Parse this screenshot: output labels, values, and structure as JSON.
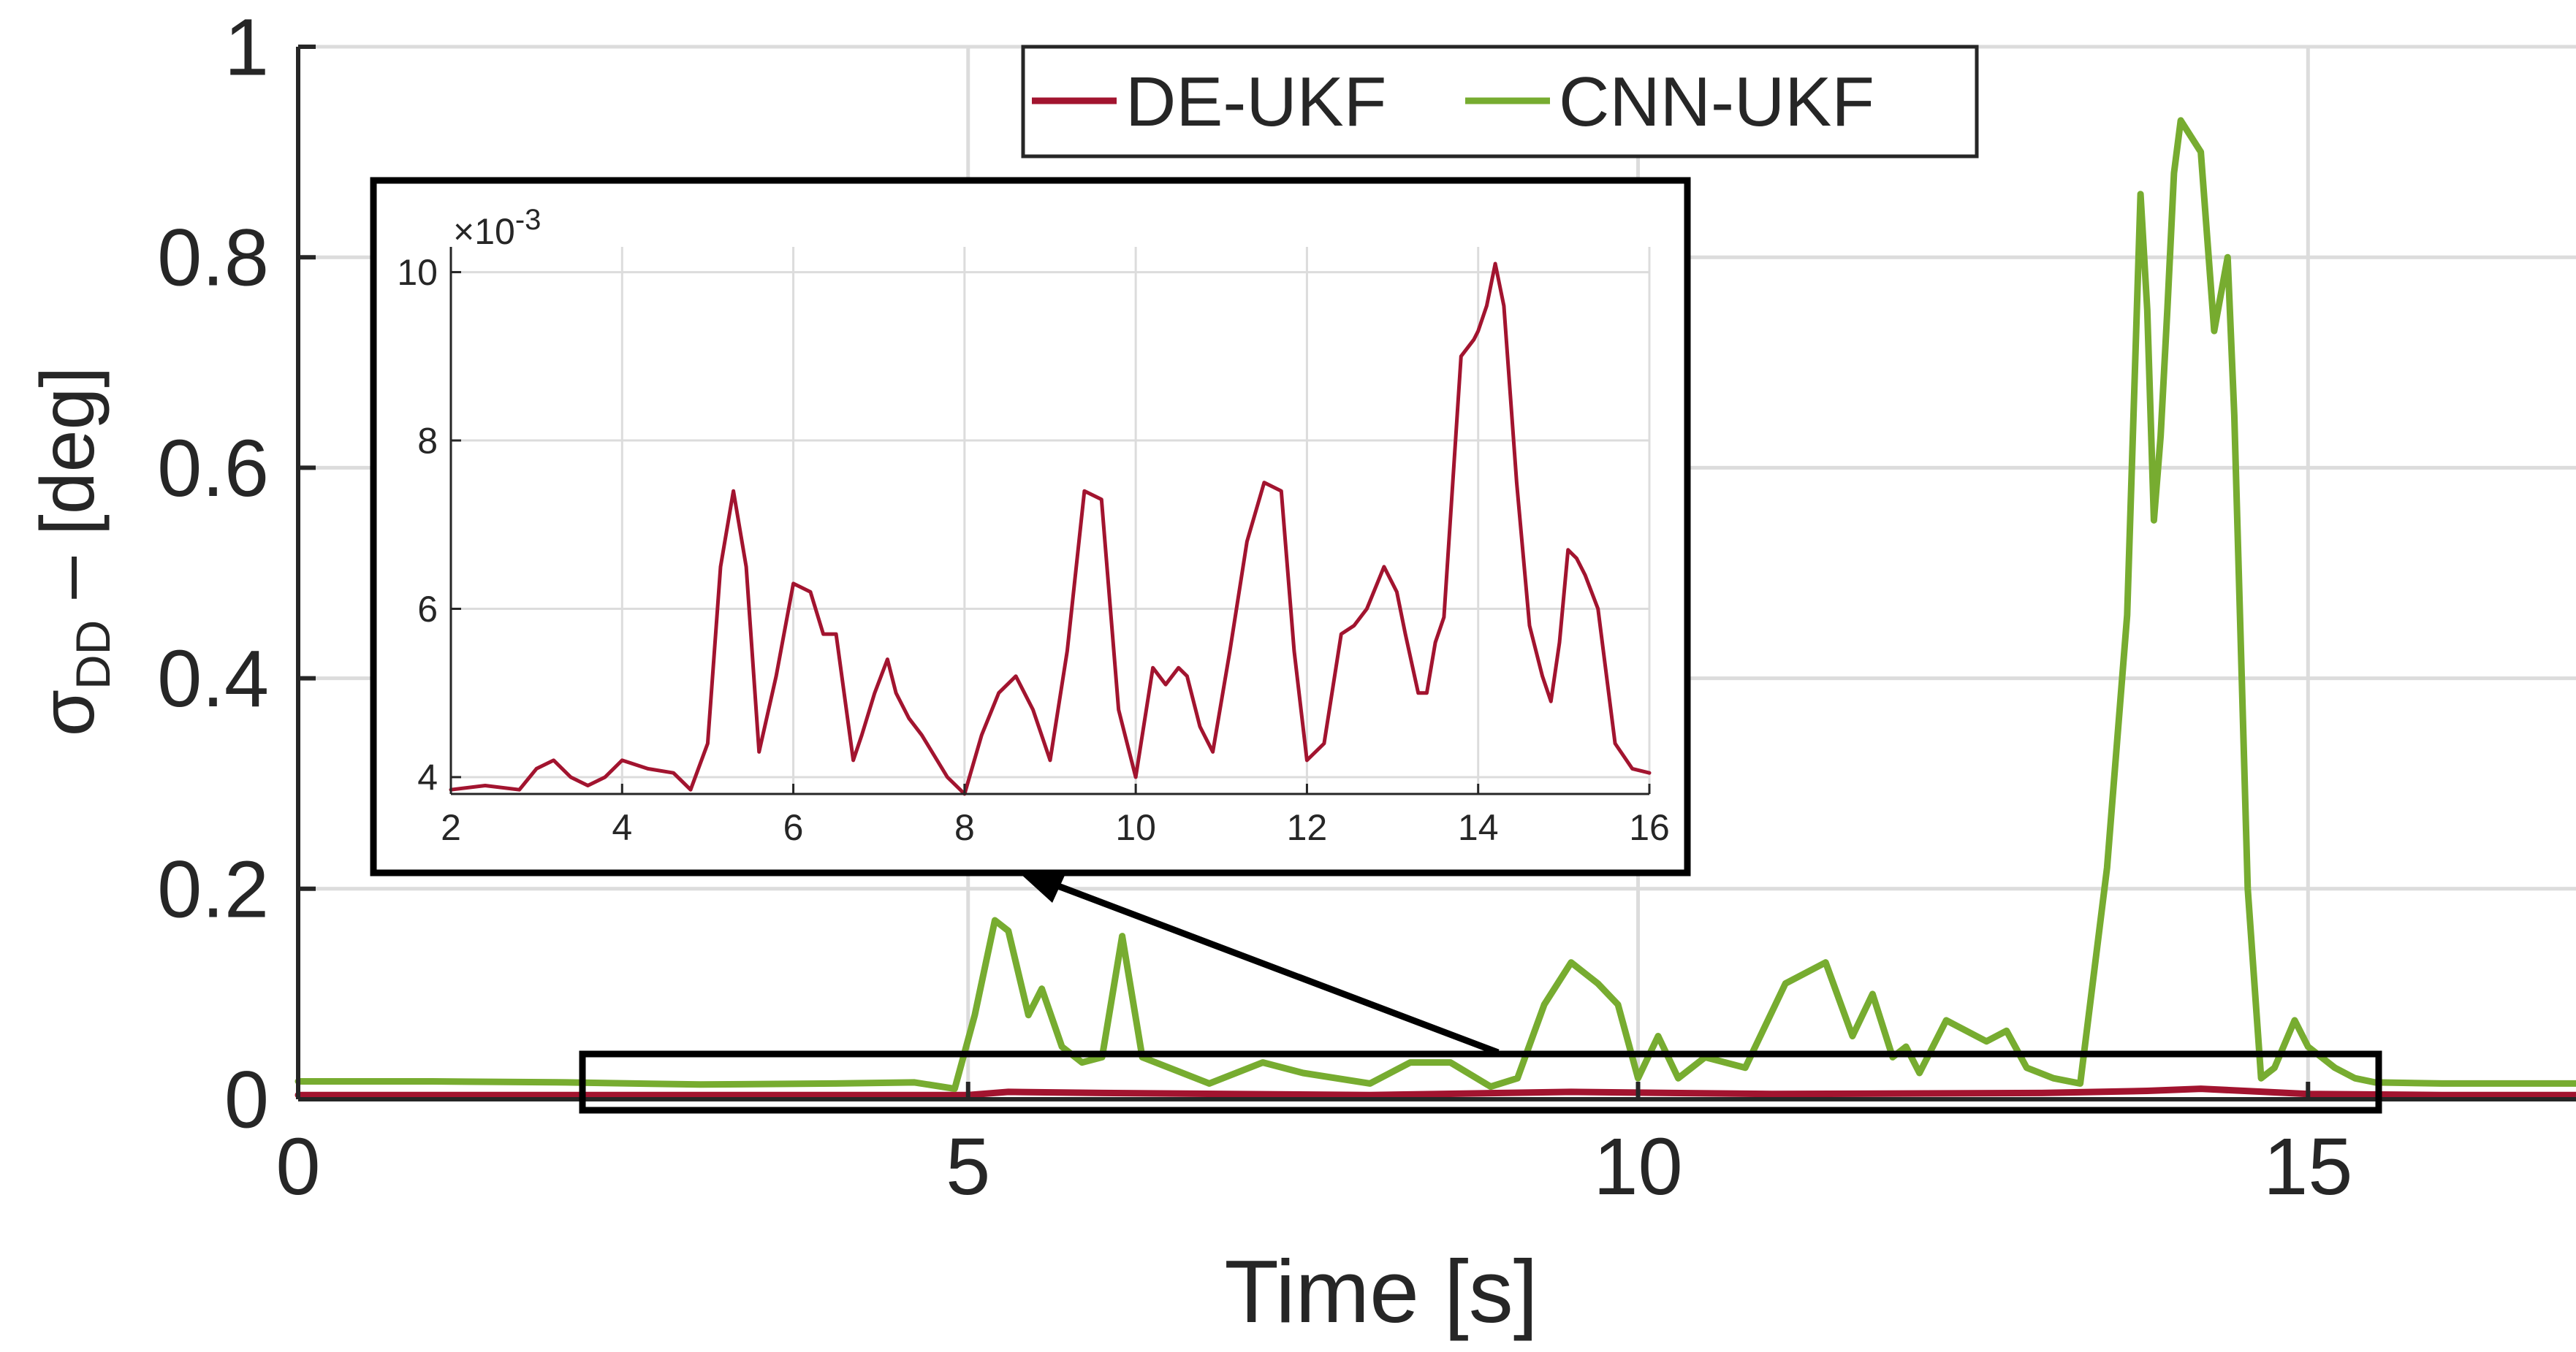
{
  "chart_data": [
    {
      "type": "line",
      "title": "",
      "xlabel": "Time [s]",
      "ylabel_main": "σ",
      "ylabel_sub": "DD",
      "ylabel_rest": " – [deg]",
      "xlim": [
        0,
        17
      ],
      "ylim": [
        0,
        1
      ],
      "xticks": [
        0,
        5,
        10,
        15
      ],
      "yticks": [
        0,
        0.2,
        0.4,
        0.6,
        0.8,
        1
      ],
      "ytick_labels": [
        "0",
        "0.2",
        "0.4",
        "0.6",
        "0.8",
        "1"
      ],
      "xtick_labels": [
        "0",
        "5",
        "10",
        "15"
      ],
      "grid": true,
      "legend_position": "top-center",
      "series": [
        {
          "name": "DE-UKF",
          "color": "#A2142F",
          "x": [
            0,
            2,
            4,
            5,
            5.3,
            6,
            8,
            9.5,
            11,
            13,
            13.8,
            14.2,
            15,
            16,
            17
          ],
          "y": [
            0.004,
            0.004,
            0.004,
            0.004,
            0.007,
            0.006,
            0.004,
            0.007,
            0.005,
            0.006,
            0.008,
            0.01,
            0.005,
            0.004,
            0.004
          ]
        },
        {
          "name": "CNN-UKF",
          "color": "#77AC30",
          "x": [
            0,
            1,
            2,
            3,
            4,
            4.6,
            4.9,
            5.05,
            5.2,
            5.3,
            5.45,
            5.55,
            5.7,
            5.85,
            6.0,
            6.15,
            6.3,
            6.5,
            6.8,
            7.2,
            7.5,
            8.0,
            8.3,
            8.6,
            8.9,
            9.1,
            9.3,
            9.5,
            9.6,
            9.7,
            9.85,
            10.0,
            10.15,
            10.3,
            10.5,
            10.8,
            11.1,
            11.4,
            11.6,
            11.75,
            11.9,
            12.0,
            12.1,
            12.3,
            12.6,
            12.75,
            12.9,
            13.1,
            13.3,
            13.5,
            13.65,
            13.75,
            13.8,
            13.85,
            13.9,
            13.95,
            14.0,
            14.05,
            14.2,
            14.3,
            14.4,
            14.45,
            14.55,
            14.65,
            14.75,
            14.9,
            15.0,
            15.2,
            15.35,
            15.5,
            16,
            17
          ],
          "y": [
            0.017,
            0.017,
            0.016,
            0.014,
            0.015,
            0.016,
            0.01,
            0.08,
            0.17,
            0.16,
            0.08,
            0.105,
            0.05,
            0.035,
            0.04,
            0.155,
            0.04,
            0.03,
            0.015,
            0.035,
            0.025,
            0.015,
            0.035,
            0.035,
            0.012,
            0.02,
            0.09,
            0.13,
            0.12,
            0.11,
            0.09,
            0.02,
            0.06,
            0.02,
            0.04,
            0.03,
            0.11,
            0.13,
            0.06,
            0.1,
            0.04,
            0.05,
            0.025,
            0.075,
            0.055,
            0.065,
            0.03,
            0.02,
            0.015,
            0.22,
            0.46,
            0.86,
            0.75,
            0.55,
            0.63,
            0.75,
            0.88,
            0.93,
            0.9,
            0.73,
            0.8,
            0.65,
            0.2,
            0.02,
            0.03,
            0.075,
            0.05,
            0.03,
            0.02,
            0.016,
            0.015,
            0.015
          ]
        }
      ]
    },
    {
      "type": "line",
      "title": "",
      "role": "inset",
      "exponent_label": "×10",
      "exponent_power": "-3",
      "xlim": [
        2,
        16
      ],
      "ylim": [
        3.8,
        10.3
      ],
      "xticks": [
        2,
        4,
        6,
        8,
        10,
        12,
        14,
        16
      ],
      "yticks": [
        4,
        6,
        8,
        10
      ],
      "xtick_labels": [
        "2",
        "4",
        "6",
        "8",
        "10",
        "12",
        "14",
        "16"
      ],
      "ytick_labels": [
        "4",
        "6",
        "8",
        "10"
      ],
      "grid": true,
      "series": [
        {
          "name": "DE-UKF",
          "color": "#A2142F",
          "x": [
            2.0,
            2.4,
            2.8,
            3.0,
            3.2,
            3.4,
            3.6,
            3.8,
            4.0,
            4.3,
            4.6,
            4.8,
            5.0,
            5.15,
            5.3,
            5.45,
            5.6,
            5.8,
            6.0,
            6.2,
            6.35,
            6.5,
            6.7,
            6.8,
            6.95,
            7.1,
            7.2,
            7.35,
            7.5,
            7.8,
            8.0,
            8.2,
            8.4,
            8.6,
            8.8,
            9.0,
            9.2,
            9.4,
            9.6,
            9.8,
            10.0,
            10.2,
            10.35,
            10.5,
            10.6,
            10.75,
            10.9,
            11.1,
            11.3,
            11.5,
            11.7,
            11.85,
            12.0,
            12.2,
            12.4,
            12.55,
            12.7,
            12.9,
            13.05,
            13.15,
            13.3,
            13.4,
            13.5,
            13.6,
            13.8,
            13.95,
            14.0,
            14.1,
            14.2,
            14.3,
            14.45,
            14.6,
            14.75,
            14.85,
            14.95,
            15.05,
            15.15,
            15.25,
            15.4,
            15.6,
            15.8,
            16.0
          ],
          "y": [
            3.85,
            3.9,
            3.85,
            4.1,
            4.2,
            4.0,
            3.9,
            4.0,
            4.2,
            4.1,
            4.05,
            3.85,
            4.4,
            6.5,
            7.4,
            6.5,
            4.3,
            5.2,
            6.3,
            6.2,
            5.7,
            5.7,
            4.2,
            4.5,
            5.0,
            5.4,
            5.0,
            4.7,
            4.5,
            4.0,
            3.8,
            4.5,
            5.0,
            5.2,
            4.8,
            4.2,
            5.5,
            7.4,
            7.3,
            4.8,
            4.0,
            5.3,
            5.1,
            5.3,
            5.2,
            4.6,
            4.3,
            5.5,
            6.8,
            7.5,
            7.4,
            5.5,
            4.2,
            4.4,
            5.7,
            5.8,
            6.0,
            6.5,
            6.2,
            5.7,
            5.0,
            5.0,
            5.6,
            5.9,
            9.0,
            9.2,
            9.3,
            9.6,
            10.1,
            9.6,
            7.5,
            5.8,
            5.2,
            4.9,
            5.6,
            6.7,
            6.6,
            6.4,
            6.0,
            4.4,
            4.1,
            4.05
          ]
        }
      ]
    }
  ],
  "legend": {
    "entries": [
      "DE-UKF",
      "CNN-UKF"
    ]
  }
}
